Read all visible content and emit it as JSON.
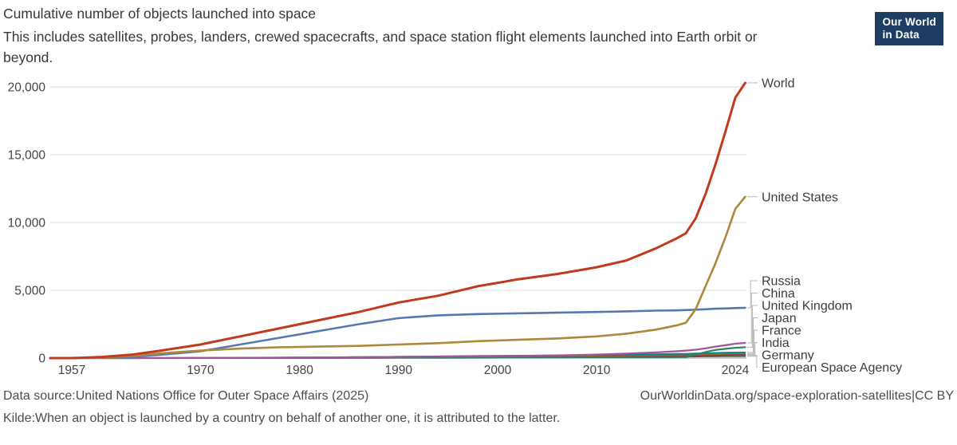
{
  "header": {
    "title": "Cumulative number of objects launched into space",
    "subtitle": "This includes satellites, probes, landers, crewed spacecrafts, and space station flight elements launched into Earth orbit or beyond.",
    "logo": {
      "line1": "Our World",
      "line2": "in Data"
    }
  },
  "chart_data": {
    "type": "line",
    "title": "Cumulative number of objects launched into space",
    "xlabel": "",
    "ylabel": "",
    "xlim": [
      1957,
      2025
    ],
    "ylim": [
      0,
      20000
    ],
    "grid": true,
    "legend_position": "right-labels",
    "x": [
      1957,
      1960,
      1963,
      1966,
      1970,
      1974,
      1978,
      1982,
      1986,
      1990,
      1994,
      1998,
      2002,
      2006,
      2010,
      2013,
      2016,
      2018,
      2019,
      2020,
      2021,
      2022,
      2023,
      2024,
      2025
    ],
    "xticks": [
      {
        "value": 1957,
        "label": "1957"
      },
      {
        "value": 1970,
        "label": "1970"
      },
      {
        "value": 1980,
        "label": "1980"
      },
      {
        "value": 1990,
        "label": "1990"
      },
      {
        "value": 2000,
        "label": "2000"
      },
      {
        "value": 2010,
        "label": "2010"
      },
      {
        "value": 2024,
        "label": "2024"
      }
    ],
    "yticks": [
      {
        "value": 0,
        "label": "0"
      },
      {
        "value": 5000,
        "label": "5,000"
      },
      {
        "value": 10000,
        "label": "10,000"
      },
      {
        "value": 15000,
        "label": "15,000"
      },
      {
        "value": 20000,
        "label": "20,000"
      }
    ],
    "series": [
      {
        "name": "World",
        "label": "World",
        "color": "#C03A1D",
        "width": 3,
        "values": [
          2,
          80,
          250,
          550,
          1000,
          1600,
          2200,
          2800,
          3400,
          4100,
          4600,
          5300,
          5800,
          6200,
          6700,
          7200,
          8100,
          8800,
          9200,
          10300,
          12100,
          14300,
          16700,
          19200,
          20300
        ]
      },
      {
        "name": "United States",
        "label": "United States",
        "color": "#AD873B",
        "width": 2.6,
        "values": [
          1,
          40,
          150,
          350,
          550,
          700,
          800,
          850,
          900,
          1000,
          1100,
          1250,
          1350,
          1450,
          1600,
          1800,
          2100,
          2400,
          2600,
          3600,
          5300,
          7000,
          8900,
          11000,
          11900
        ]
      },
      {
        "name": "Russia",
        "label": "Russia",
        "color": "#5578B0",
        "width": 2.6,
        "values": [
          1,
          20,
          90,
          250,
          500,
          1000,
          1500,
          2000,
          2500,
          2950,
          3150,
          3250,
          3300,
          3350,
          3400,
          3450,
          3500,
          3520,
          3540,
          3570,
          3600,
          3640,
          3660,
          3690,
          3710
        ]
      },
      {
        "name": "China",
        "label": "China",
        "color": "#A2559C",
        "width": 2.2,
        "values": [
          0,
          0,
          0,
          0,
          5,
          15,
          25,
          40,
          60,
          90,
          110,
          130,
          160,
          200,
          260,
          330,
          420,
          500,
          550,
          620,
          720,
          850,
          950,
          1060,
          1120
        ]
      },
      {
        "name": "United Kingdom",
        "label": "United Kingdom",
        "color": "#2C8465",
        "width": 2.2,
        "values": [
          0,
          0,
          2,
          3,
          5,
          8,
          10,
          13,
          16,
          20,
          25,
          30,
          35,
          40,
          45,
          50,
          55,
          60,
          70,
          250,
          450,
          600,
          680,
          760,
          800
        ]
      },
      {
        "name": "Japan",
        "label": "Japan",
        "color": "#00847E",
        "width": 1.8,
        "values": [
          0,
          0,
          0,
          0,
          8,
          20,
          35,
          50,
          70,
          100,
          130,
          160,
          180,
          200,
          230,
          260,
          290,
          310,
          320,
          340,
          360,
          380,
          400,
          410,
          420
        ]
      },
      {
        "name": "France",
        "label": "France",
        "color": "#996D39",
        "width": 1.8,
        "values": [
          0,
          0,
          0,
          5,
          15,
          30,
          45,
          60,
          80,
          100,
          120,
          140,
          155,
          170,
          185,
          200,
          215,
          230,
          240,
          255,
          270,
          290,
          305,
          320,
          330
        ]
      },
      {
        "name": "India",
        "label": "India",
        "color": "#883039",
        "width": 1.8,
        "values": [
          0,
          0,
          0,
          0,
          0,
          2,
          5,
          10,
          15,
          25,
          35,
          45,
          55,
          65,
          85,
          100,
          120,
          140,
          150,
          160,
          180,
          200,
          220,
          240,
          250
        ]
      },
      {
        "name": "Germany",
        "label": "Germany",
        "color": "#578145",
        "width": 1.8,
        "values": [
          0,
          0,
          0,
          2,
          6,
          12,
          18,
          25,
          35,
          50,
          60,
          75,
          85,
          95,
          105,
          115,
          130,
          140,
          145,
          155,
          165,
          175,
          182,
          188,
          192
        ]
      },
      {
        "name": "European Space Agency",
        "label": "European Space Agency",
        "color": "#6D4391",
        "width": 1.8,
        "values": [
          0,
          0,
          0,
          0,
          0,
          0,
          2,
          8,
          15,
          25,
          35,
          45,
          55,
          65,
          75,
          85,
          95,
          100,
          105,
          110,
          115,
          120,
          125,
          128,
          130
        ]
      }
    ]
  },
  "footer": {
    "source_label": "Data source:",
    "source_text": "United Nations Office for Outer Space Affairs (2025)",
    "url_text": "OurWorldinData.org/space-exploration-satellites",
    "license_sep": "|",
    "license": "CC BY",
    "note_label": "Kilde:",
    "note_text": "When an object is launched by a country on behalf of another one, it is attributed to the latter."
  },
  "colors": {
    "background": "#ffffff",
    "gridline": "#d9d9d9",
    "axis_zero_line": "#9a9a9a",
    "tick_text": "#444444",
    "label_text": "#3d3d3d",
    "connector": "#b8b8b8",
    "logo_bg": "#1D3D63"
  }
}
